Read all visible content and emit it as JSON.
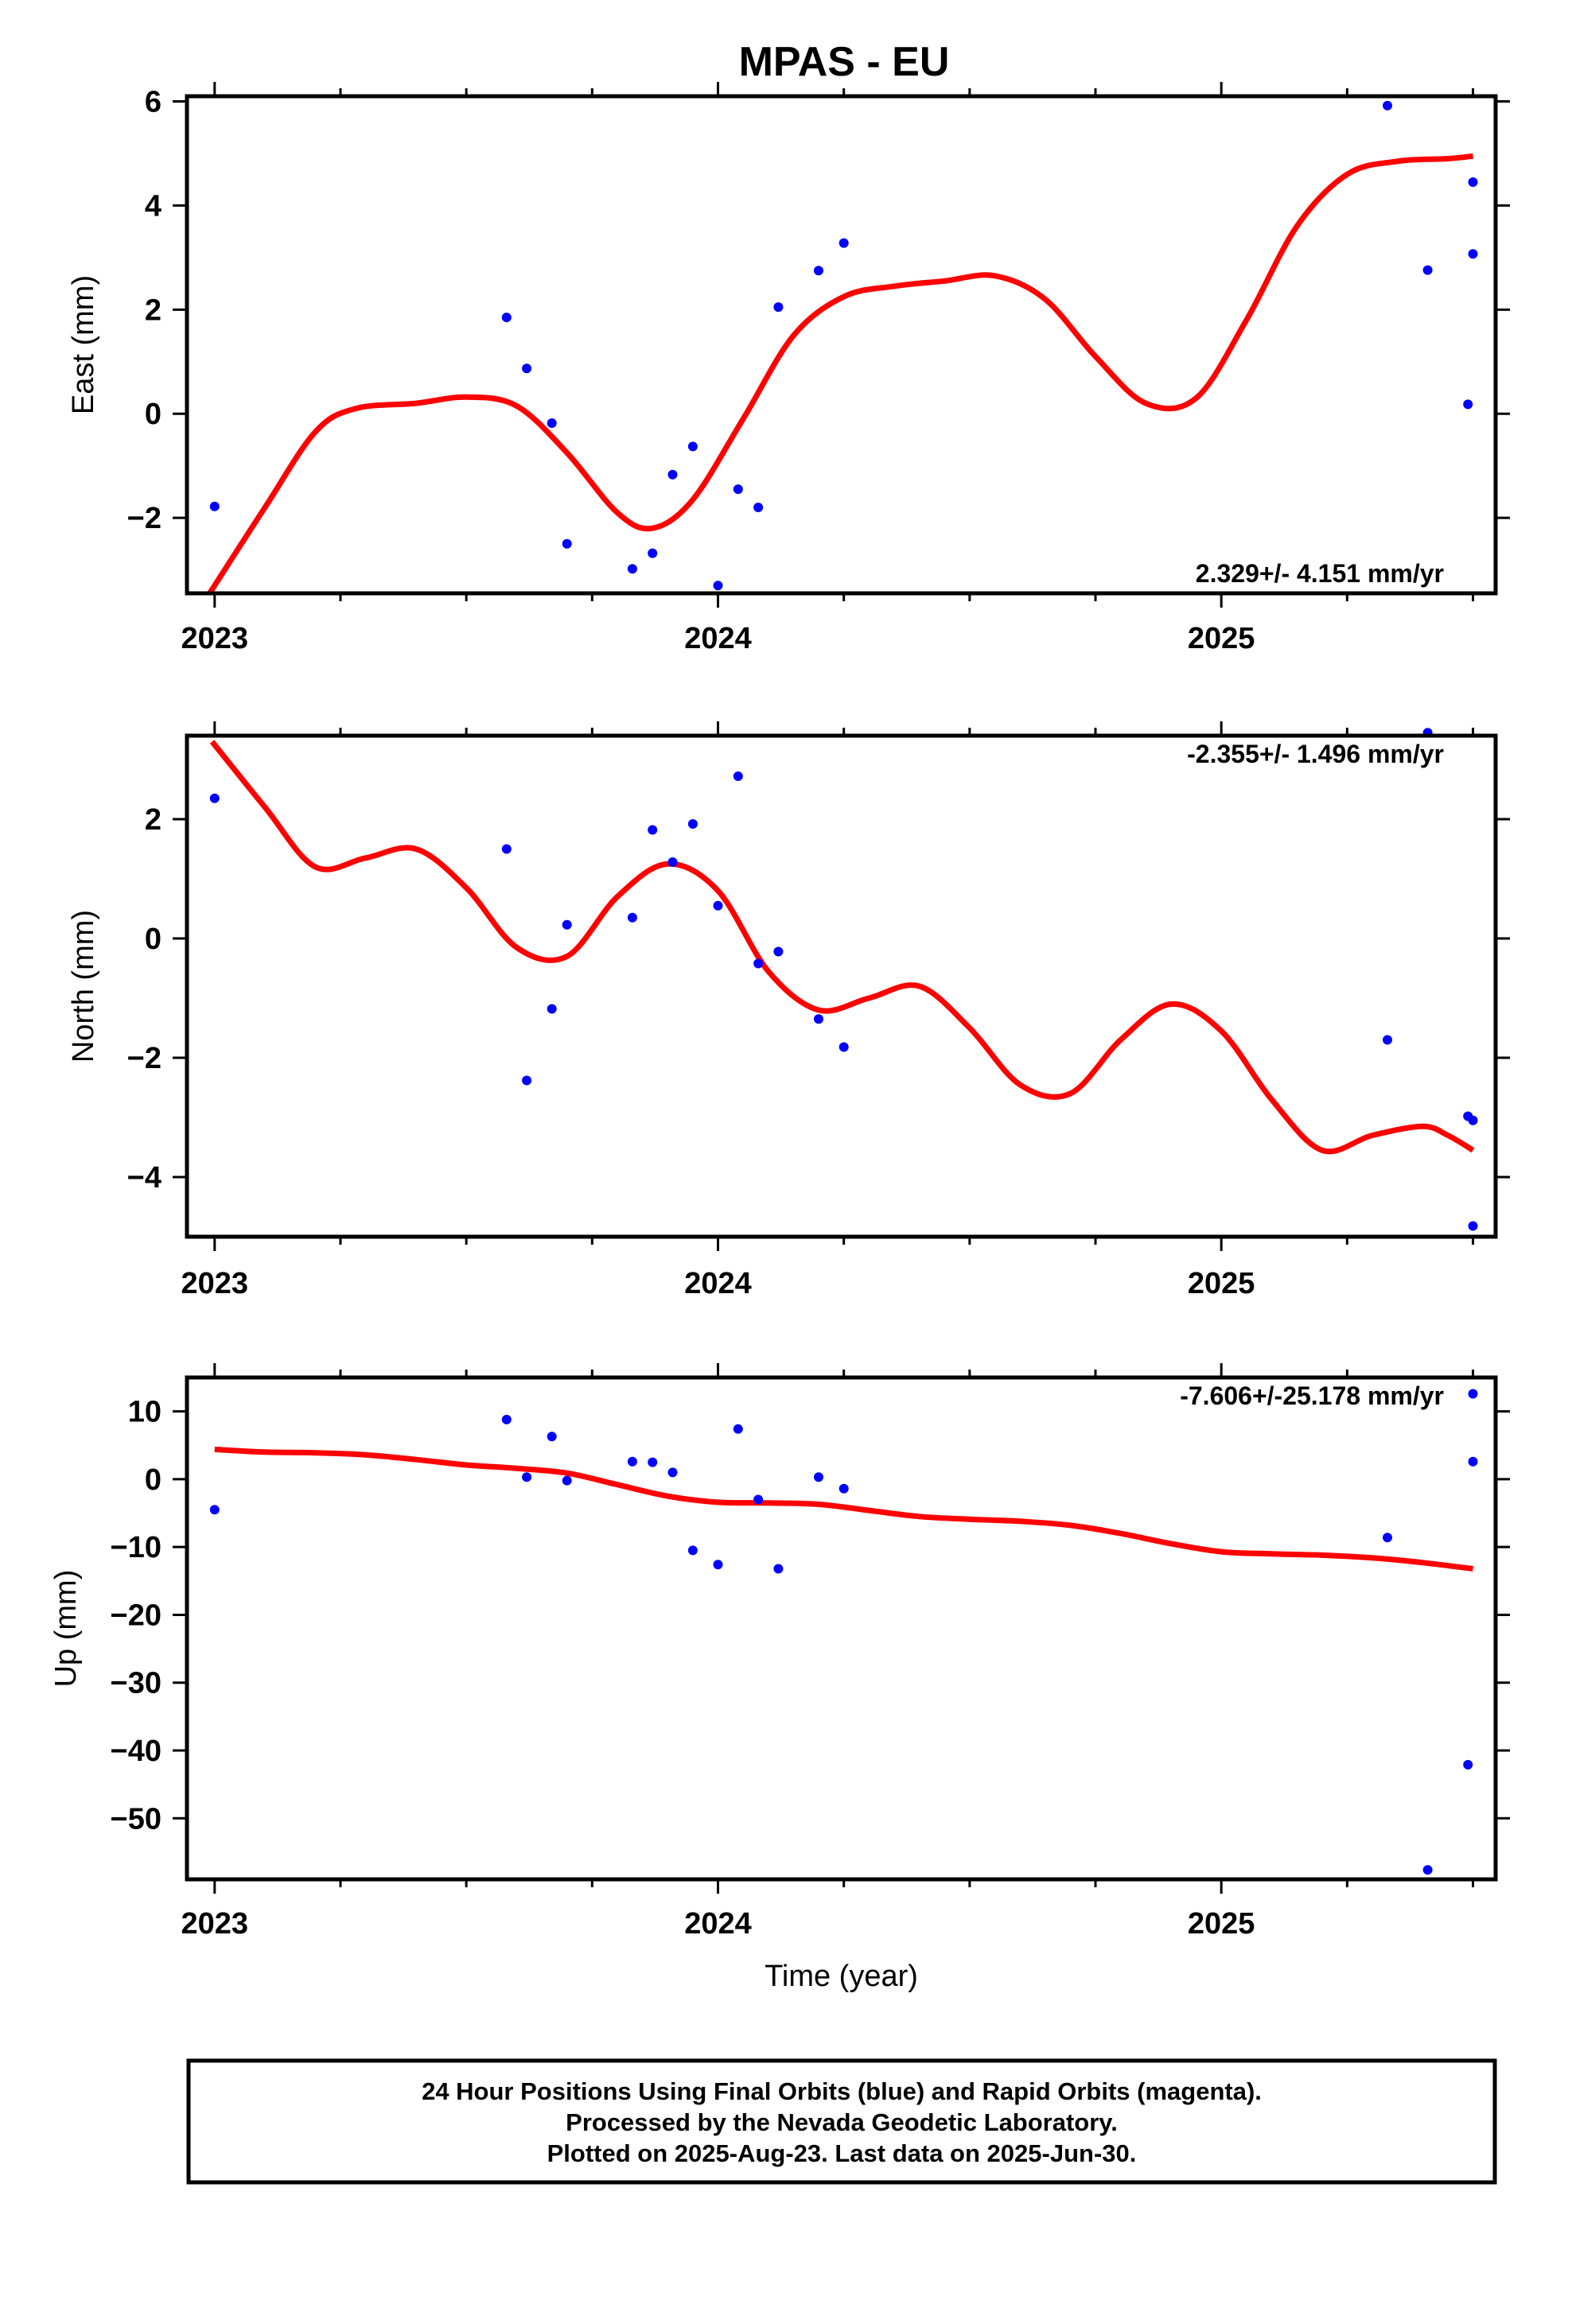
{
  "title": "MPAS - EU",
  "footer": {
    "line1": "24 Hour Positions Using Final Orbits (blue) and Rapid Orbits (magenta).",
    "line2": "Processed by the Nevada Geodetic Laboratory.",
    "line3": "Plotted on 2025-Aug-23. Last data on 2025-Jun-30."
  },
  "colors": {
    "points": "#0000ff",
    "fit": "#ff0000",
    "axis": "#000000"
  },
  "chart_data": [
    {
      "type": "scatter",
      "ylabel": "East (mm)",
      "xlabel": "",
      "rate_label": "2.329+/- 4.151 mm/yr",
      "rate_position": "bottom-right",
      "xlim": [
        2022.945,
        2025.545
      ],
      "ylim": [
        -3.45,
        6.1
      ],
      "xticks": [
        {
          "value": 2023,
          "label": "2023"
        },
        {
          "value": 2024,
          "label": "2024"
        },
        {
          "value": 2025,
          "label": "2025"
        }
      ],
      "yticks": [
        {
          "value": -2,
          "label": "−2"
        },
        {
          "value": 0,
          "label": "0"
        },
        {
          "value": 2,
          "label": "2"
        },
        {
          "value": 4,
          "label": "4"
        },
        {
          "value": 6,
          "label": "6"
        }
      ],
      "series": [
        {
          "kind": "points",
          "x": [
            2023.0,
            2023.58,
            2023.62,
            2023.67,
            2023.7,
            2023.83,
            2023.87,
            2023.91,
            2023.95,
            2024.0,
            2024.04,
            2024.08,
            2024.12,
            2024.2,
            2024.25,
            2025.33,
            2025.41,
            2025.49,
            2025.5,
            2025.5
          ],
          "y": [
            -1.78,
            1.85,
            0.87,
            -0.18,
            -2.5,
            -2.98,
            -2.68,
            -1.17,
            -0.63,
            -3.3,
            -1.45,
            -1.8,
            2.05,
            2.75,
            3.28,
            5.92,
            2.76,
            0.18,
            4.45,
            3.07
          ]
        },
        {
          "kind": "fit",
          "x": [
            2022.99,
            2023.1,
            2023.2,
            2023.28,
            2023.4,
            2023.5,
            2023.6,
            2023.7,
            2023.8,
            2023.87,
            2023.95,
            2024.05,
            2024.15,
            2024.25,
            2024.35,
            2024.45,
            2024.55,
            2024.65,
            2024.75,
            2024.85,
            2024.95,
            2025.05,
            2025.15,
            2025.25,
            2025.35,
            2025.45,
            2025.5
          ],
          "y": [
            -3.45,
            -1.8,
            -0.35,
            0.1,
            0.2,
            0.32,
            0.15,
            -0.75,
            -1.9,
            -2.2,
            -1.65,
            -0.1,
            1.5,
            2.25,
            2.45,
            2.55,
            2.65,
            2.2,
            1.1,
            0.2,
            0.3,
            1.8,
            3.6,
            4.6,
            4.85,
            4.9,
            4.95
          ]
        }
      ]
    },
    {
      "type": "scatter",
      "ylabel": "North (mm)",
      "xlabel": "",
      "rate_label": "-2.355+/- 1.496 mm/yr",
      "rate_position": "top-right",
      "xlim": [
        2022.945,
        2025.545
      ],
      "ylim": [
        -5.0,
        3.4
      ],
      "xticks": [
        {
          "value": 2023,
          "label": "2023"
        },
        {
          "value": 2024,
          "label": "2024"
        },
        {
          "value": 2025,
          "label": "2025"
        }
      ],
      "yticks": [
        {
          "value": -4,
          "label": "−4"
        },
        {
          "value": -2,
          "label": "−2"
        },
        {
          "value": 0,
          "label": "0"
        },
        {
          "value": 2,
          "label": "2"
        }
      ],
      "series": [
        {
          "kind": "points",
          "x": [
            2023.0,
            2023.58,
            2023.62,
            2023.67,
            2023.7,
            2023.83,
            2023.87,
            2023.91,
            2023.95,
            2024.0,
            2024.04,
            2024.08,
            2024.12,
            2024.2,
            2024.25,
            2025.33,
            2025.41,
            2025.49,
            2025.5,
            2025.5
          ],
          "y": [
            2.35,
            1.5,
            -2.38,
            -1.18,
            0.23,
            0.35,
            1.82,
            1.28,
            1.92,
            0.55,
            2.72,
            -0.42,
            -0.22,
            -1.35,
            -1.82,
            -1.7,
            3.45,
            -2.98,
            -4.82,
            -3.05
          ]
        },
        {
          "kind": "fit",
          "x": [
            2022.995,
            2023.1,
            2023.2,
            2023.3,
            2023.4,
            2023.5,
            2023.6,
            2023.7,
            2023.8,
            2023.9,
            2024.0,
            2024.1,
            2024.2,
            2024.3,
            2024.4,
            2024.5,
            2024.6,
            2024.7,
            2024.8,
            2024.9,
            2025.0,
            2025.1,
            2025.2,
            2025.3,
            2025.4,
            2025.45,
            2025.5
          ],
          "y": [
            3.3,
            2.2,
            1.2,
            1.35,
            1.5,
            0.85,
            -0.15,
            -0.3,
            0.7,
            1.25,
            0.8,
            -0.55,
            -1.2,
            -1.0,
            -0.8,
            -1.5,
            -2.45,
            -2.6,
            -1.7,
            -1.1,
            -1.55,
            -2.7,
            -3.55,
            -3.3,
            -3.15,
            -3.3,
            -3.55
          ]
        }
      ]
    },
    {
      "type": "scatter",
      "ylabel": "Up (mm)",
      "xlabel": "Time (year)",
      "rate_label": "-7.606+/-25.178 mm/yr",
      "rate_position": "top-right",
      "xlim": [
        2022.945,
        2025.545
      ],
      "ylim": [
        -59,
        15
      ],
      "xticks": [
        {
          "value": 2023,
          "label": "2023"
        },
        {
          "value": 2024,
          "label": "2024"
        },
        {
          "value": 2025,
          "label": "2025"
        }
      ],
      "yticks": [
        {
          "value": -50,
          "label": "−50"
        },
        {
          "value": -40,
          "label": "−40"
        },
        {
          "value": -30,
          "label": "−30"
        },
        {
          "value": -20,
          "label": "−20"
        },
        {
          "value": -10,
          "label": "−10"
        },
        {
          "value": 0,
          "label": "0"
        },
        {
          "value": 10,
          "label": "10"
        }
      ],
      "series": [
        {
          "kind": "points",
          "x": [
            2023.0,
            2023.58,
            2023.62,
            2023.67,
            2023.7,
            2023.83,
            2023.87,
            2023.91,
            2023.95,
            2024.0,
            2024.04,
            2024.08,
            2024.12,
            2024.2,
            2024.25,
            2025.33,
            2025.41,
            2025.49,
            2025.5,
            2025.5
          ],
          "y": [
            -4.5,
            8.8,
            0.3,
            6.3,
            -0.2,
            2.6,
            2.5,
            1.0,
            -10.5,
            -12.6,
            7.4,
            -3.0,
            -13.2,
            0.3,
            -1.4,
            -8.6,
            -57.6,
            -42.1,
            2.6,
            12.6
          ]
        },
        {
          "kind": "fit",
          "x": [
            2023.0,
            2023.1,
            2023.2,
            2023.3,
            2023.4,
            2023.5,
            2023.6,
            2023.7,
            2023.8,
            2023.9,
            2024.0,
            2024.1,
            2024.2,
            2024.3,
            2024.4,
            2024.5,
            2024.6,
            2024.7,
            2024.8,
            2024.9,
            2025.0,
            2025.1,
            2025.2,
            2025.3,
            2025.4,
            2025.5
          ],
          "y": [
            4.4,
            4.0,
            3.9,
            3.6,
            2.9,
            2.1,
            1.6,
            0.9,
            -0.8,
            -2.5,
            -3.4,
            -3.5,
            -3.7,
            -4.6,
            -5.5,
            -5.9,
            -6.2,
            -6.8,
            -8.0,
            -9.5,
            -10.7,
            -11.0,
            -11.2,
            -11.6,
            -12.3,
            -13.2
          ]
        }
      ]
    }
  ]
}
